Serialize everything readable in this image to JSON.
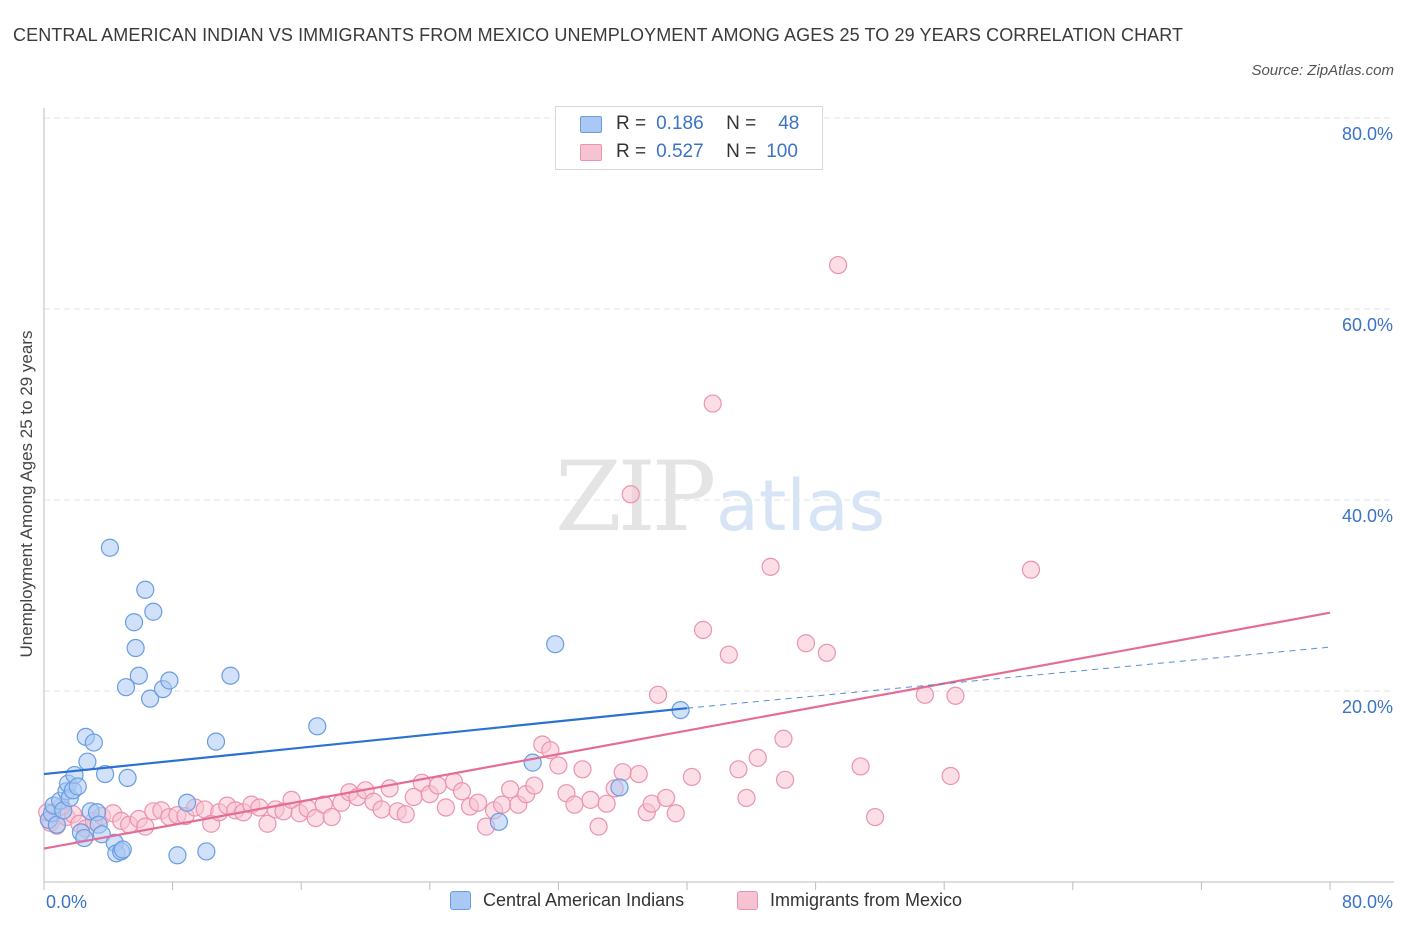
{
  "title": "CENTRAL AMERICAN INDIAN VS IMMIGRANTS FROM MEXICO UNEMPLOYMENT AMONG AGES 25 TO 29 YEARS CORRELATION CHART",
  "source": "Source: ZipAtlas.com",
  "watermark": {
    "zip": "ZIP",
    "atlas": "atlas"
  },
  "legend": [
    {
      "r_label": "R =",
      "r_value": "0.186",
      "n_label": "N =",
      "n_value": "48",
      "color": "#aac8f4"
    },
    {
      "r_label": "R =",
      "r_value": "0.527",
      "n_label": "N =",
      "n_value": "100",
      "color": "#f5b9cb"
    }
  ],
  "colors": {
    "series1_fill": "#aac8f4",
    "series1_stroke": "#6a9de0",
    "series1_line": "#2a72cf",
    "series2_fill": "#f7c3d2",
    "series2_stroke": "#ec93ae",
    "series2_line": "#e46d96",
    "accent_text": "#3b73c8",
    "grid": "#e3e3e3"
  },
  "chart_data": {
    "type": "scatter",
    "title": "CENTRAL AMERICAN INDIAN VS IMMIGRANTS FROM MEXICO UNEMPLOYMENT AMONG AGES 25 TO 29 YEARS CORRELATION CHART",
    "xlabel": "",
    "ylabel": "Unemployment Among Ages 25 to 29 years",
    "xlim": [
      0,
      80
    ],
    "ylim": [
      0,
      80
    ],
    "x_tick_labels": [
      "0.0%",
      "80.0%"
    ],
    "y_tick_labels": [
      "20.0%",
      "40.0%",
      "60.0%",
      "80.0%"
    ],
    "y_ticks": [
      20,
      40,
      60,
      80
    ],
    "grid": true,
    "legend_position": "top-center",
    "series": [
      {
        "name": "Central American Indians",
        "r": 0.186,
        "n": 48,
        "trend": {
          "x0": 0,
          "y0": 11.3,
          "x1": 40,
          "y1": 18.2,
          "dashed_to_x": 80,
          "dashed_to_y": 24.6
        },
        "points": [
          [
            0.3,
            6.5
          ],
          [
            0.5,
            7.2
          ],
          [
            0.6,
            8.0
          ],
          [
            0.8,
            6.0
          ],
          [
            1.0,
            8.5
          ],
          [
            1.2,
            7.5
          ],
          [
            1.4,
            9.5
          ],
          [
            1.5,
            10.3
          ],
          [
            1.6,
            8.8
          ],
          [
            1.8,
            9.6
          ],
          [
            1.9,
            11.2
          ],
          [
            2.1,
            10.0
          ],
          [
            2.3,
            5.2
          ],
          [
            2.5,
            4.6
          ],
          [
            2.6,
            15.2
          ],
          [
            2.7,
            12.6
          ],
          [
            2.9,
            7.4
          ],
          [
            3.1,
            14.6
          ],
          [
            3.3,
            7.3
          ],
          [
            3.4,
            6.0
          ],
          [
            3.6,
            5.0
          ],
          [
            3.8,
            11.3
          ],
          [
            4.1,
            35.0
          ],
          [
            4.4,
            4.1
          ],
          [
            4.5,
            3.0
          ],
          [
            4.8,
            3.2
          ],
          [
            4.9,
            3.4
          ],
          [
            5.2,
            10.9
          ],
          [
            5.6,
            27.2
          ],
          [
            5.7,
            24.5
          ],
          [
            5.9,
            21.6
          ],
          [
            6.3,
            30.6
          ],
          [
            6.6,
            19.2
          ],
          [
            6.8,
            28.3
          ],
          [
            5.1,
            20.4
          ],
          [
            7.4,
            20.2
          ],
          [
            7.8,
            21.1
          ],
          [
            8.3,
            2.8
          ],
          [
            8.9,
            8.3
          ],
          [
            10.1,
            3.2
          ],
          [
            10.7,
            14.7
          ],
          [
            11.6,
            21.6
          ],
          [
            17.0,
            16.3
          ],
          [
            28.3,
            6.3
          ],
          [
            30.4,
            12.5
          ],
          [
            31.8,
            24.9
          ],
          [
            35.8,
            9.9
          ],
          [
            39.6,
            18.0
          ]
        ]
      },
      {
        "name": "Immigrants from Mexico",
        "r": 0.527,
        "n": 100,
        "trend": {
          "x0": 0,
          "y0": 3.5,
          "x1": 80,
          "y1": 28.2
        },
        "points": [
          [
            0.4,
            6.2
          ],
          [
            0.8,
            5.9
          ],
          [
            1.4,
            6.8
          ],
          [
            1.8,
            7.1
          ],
          [
            2.2,
            6.1
          ],
          [
            2.6,
            5.6
          ],
          [
            3.1,
            6.4
          ],
          [
            3.6,
            6.9
          ],
          [
            4.3,
            7.2
          ],
          [
            4.8,
            6.4
          ],
          [
            5.3,
            6.0
          ],
          [
            5.9,
            6.6
          ],
          [
            6.3,
            5.8
          ],
          [
            6.8,
            7.4
          ],
          [
            7.3,
            7.5
          ],
          [
            7.8,
            6.8
          ],
          [
            8.3,
            7.0
          ],
          [
            8.8,
            6.9
          ],
          [
            9.4,
            7.8
          ],
          [
            10.0,
            7.6
          ],
          [
            10.4,
            6.1
          ],
          [
            10.9,
            7.3
          ],
          [
            11.4,
            8.0
          ],
          [
            11.9,
            7.5
          ],
          [
            12.4,
            7.3
          ],
          [
            12.9,
            8.1
          ],
          [
            13.4,
            7.8
          ],
          [
            13.9,
            6.1
          ],
          [
            14.4,
            7.6
          ],
          [
            14.9,
            7.4
          ],
          [
            15.4,
            8.6
          ],
          [
            15.9,
            7.2
          ],
          [
            16.4,
            7.7
          ],
          [
            16.9,
            6.7
          ],
          [
            17.4,
            8.1
          ],
          [
            17.9,
            6.8
          ],
          [
            18.5,
            8.3
          ],
          [
            19.0,
            9.4
          ],
          [
            19.5,
            8.9
          ],
          [
            20.0,
            9.6
          ],
          [
            20.5,
            8.4
          ],
          [
            21.0,
            7.6
          ],
          [
            21.5,
            9.8
          ],
          [
            22.0,
            7.4
          ],
          [
            22.5,
            7.1
          ],
          [
            23.0,
            8.9
          ],
          [
            23.5,
            10.4
          ],
          [
            24.0,
            9.2
          ],
          [
            24.5,
            10.1
          ],
          [
            25.0,
            7.8
          ],
          [
            25.5,
            10.5
          ],
          [
            26.0,
            9.5
          ],
          [
            26.5,
            7.9
          ],
          [
            27.0,
            8.3
          ],
          [
            27.5,
            5.8
          ],
          [
            28.0,
            7.5
          ],
          [
            28.5,
            8.1
          ],
          [
            29.0,
            9.7
          ],
          [
            29.5,
            8.1
          ],
          [
            30.0,
            9.2
          ],
          [
            30.5,
            10.1
          ],
          [
            31.0,
            14.4
          ],
          [
            31.5,
            13.8
          ],
          [
            32.0,
            12.2
          ],
          [
            32.5,
            9.3
          ],
          [
            33.0,
            8.1
          ],
          [
            33.5,
            11.8
          ],
          [
            34.0,
            8.6
          ],
          [
            34.5,
            5.8
          ],
          [
            35.0,
            8.2
          ],
          [
            35.5,
            9.8
          ],
          [
            36.0,
            11.5
          ],
          [
            36.5,
            40.6
          ],
          [
            37.0,
            11.3
          ],
          [
            37.5,
            7.3
          ],
          [
            37.8,
            8.2
          ],
          [
            38.2,
            19.6
          ],
          [
            38.7,
            8.8
          ],
          [
            39.3,
            7.2
          ],
          [
            40.3,
            11.0
          ],
          [
            41.0,
            26.4
          ],
          [
            41.6,
            50.1
          ],
          [
            42.6,
            23.8
          ],
          [
            43.2,
            11.8
          ],
          [
            43.7,
            8.8
          ],
          [
            44.4,
            13.0
          ],
          [
            45.2,
            33.0
          ],
          [
            46.0,
            15.0
          ],
          [
            46.1,
            10.7
          ],
          [
            47.4,
            25.0
          ],
          [
            48.7,
            24.0
          ],
          [
            49.4,
            64.6
          ],
          [
            50.8,
            12.1
          ],
          [
            51.7,
            6.8
          ],
          [
            54.8,
            19.6
          ],
          [
            56.4,
            11.1
          ],
          [
            56.7,
            19.5
          ],
          [
            61.4,
            32.7
          ],
          [
            0.2,
            7.3
          ],
          [
            1.1,
            7.9
          ]
        ]
      }
    ]
  }
}
